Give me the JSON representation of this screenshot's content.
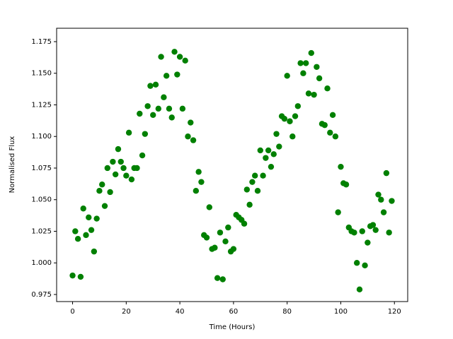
{
  "chart_data": {
    "type": "scatter",
    "x_label": "Time (Hours)",
    "y_label": "Normalised Flux",
    "color": "#008000",
    "xlim": [
      -5.95,
      124.95
    ],
    "ylim": [
      0.9694,
      1.1856
    ],
    "xticks": [
      0,
      20,
      40,
      60,
      80,
      100,
      120
    ],
    "yticks": [
      0.975,
      {
        "value": 1,
        "label": "1.000"
      },
      1.025,
      {
        "value": 1.05,
        "label": "1.050"
      },
      1.075,
      {
        "value": 1.1,
        "label": "1.100"
      },
      1.125,
      {
        "value": 1.15,
        "label": "1.150"
      },
      1.175
    ],
    "x": [
      0,
      1,
      2,
      3,
      4,
      5,
      6,
      7,
      8,
      9,
      10,
      11,
      12,
      13,
      14,
      15,
      16,
      17,
      18,
      19,
      20,
      21,
      22,
      23,
      24,
      25,
      26,
      27,
      28,
      29,
      30,
      31,
      32,
      33,
      34,
      35,
      36,
      37,
      38,
      39,
      40,
      41,
      42,
      43,
      44,
      45,
      46,
      47,
      48,
      49,
      50,
      51,
      52,
      53,
      54,
      55,
      56,
      57,
      58,
      59,
      60,
      61,
      62,
      63,
      64,
      65,
      66,
      67,
      68,
      69,
      70,
      71,
      72,
      73,
      74,
      75,
      76,
      77,
      78,
      79,
      80,
      81,
      82,
      83,
      84,
      85,
      86,
      87,
      88,
      89,
      90,
      91,
      92,
      93,
      94,
      95,
      96,
      97,
      98,
      99,
      100,
      101,
      102,
      103,
      104,
      105,
      106,
      107,
      108,
      109,
      110,
      111,
      112,
      113,
      114,
      115,
      116,
      117,
      118,
      119
    ],
    "values": [
      0.99,
      1.025,
      1.019,
      0.989,
      1.043,
      1.022,
      1.036,
      1.026,
      1.009,
      1.035,
      1.057,
      1.062,
      1.045,
      1.075,
      1.056,
      1.08,
      1.07,
      1.09,
      1.08,
      1.075,
      1.069,
      1.103,
      1.066,
      1.075,
      1.075,
      1.118,
      1.085,
      1.102,
      1.124,
      1.14,
      1.117,
      1.141,
      1.122,
      1.163,
      1.131,
      1.148,
      1.122,
      1.115,
      1.167,
      1.149,
      1.163,
      1.122,
      1.16,
      1.1,
      1.111,
      1.097,
      1.057,
      1.072,
      1.064,
      1.022,
      1.02,
      1.044,
      1.011,
      1.012,
      0.988,
      1.024,
      0.987,
      1.017,
      1.028,
      1.009,
      1.011,
      1.038,
      1.036,
      1.034,
      1.031,
      1.058,
      1.046,
      1.064,
      1.069,
      1.057,
      1.089,
      1.069,
      1.083,
      1.089,
      1.076,
      1.086,
      1.102,
      1.092,
      1.116,
      1.114,
      1.148,
      1.112,
      1.1,
      1.116,
      1.124,
      1.158,
      1.15,
      1.158,
      1.134,
      1.166,
      1.133,
      1.155,
      1.146,
      1.11,
      1.109,
      1.138,
      1.103,
      1.117,
      1.1,
      1.04,
      1.076,
      1.063,
      1.062,
      1.028,
      1.025,
      1.024,
      1.0,
      0.979,
      1.025,
      0.998,
      1.016,
      1.029,
      1.03,
      1.026,
      1.054,
      1.05,
      1.04,
      1.071,
      1.024,
      1.049
    ]
  }
}
